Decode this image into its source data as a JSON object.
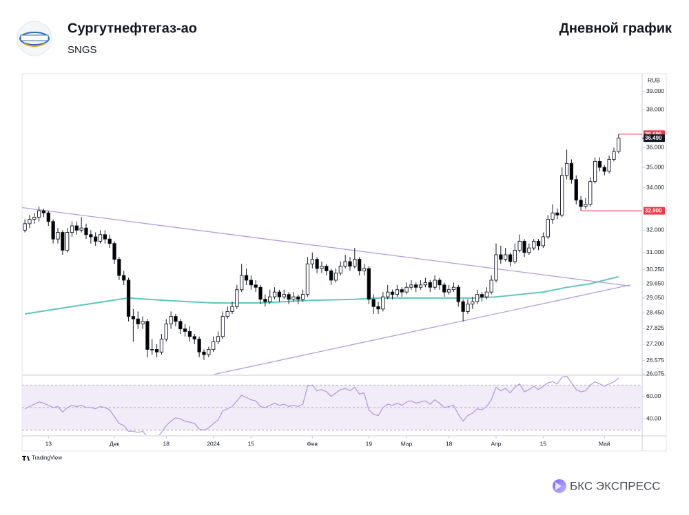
{
  "header": {
    "title": "Сургутнефтегаз-ао",
    "ticker": "SNGS",
    "chart_kind": "Дневной график"
  },
  "footer": {
    "tradingview": "TradingView",
    "brand": "БКС ЭКСПРЕСС"
  },
  "chart_data": {
    "type": "candlestick",
    "currency": "RUB",
    "log_scale": true,
    "up_color": "#ffffff",
    "down_color": "#000000",
    "xlim": [
      -0.6,
      131
    ],
    "xticks": [
      {
        "value": 5,
        "label": "13"
      },
      {
        "value": 19,
        "label": "Дек"
      },
      {
        "value": 30,
        "label": "18"
      },
      {
        "value": 40,
        "label": "2024"
      },
      {
        "value": 48,
        "label": "15"
      },
      {
        "value": 61,
        "label": "Фев"
      },
      {
        "value": 73,
        "label": "19"
      },
      {
        "value": 81,
        "label": "Мар"
      },
      {
        "value": 90,
        "label": "18"
      },
      {
        "value": 100,
        "label": "Апр"
      },
      {
        "value": 110,
        "label": "15"
      },
      {
        "value": 123,
        "label": "Май"
      }
    ],
    "ylim": [
      26.075,
      40
    ],
    "yticks": [
      {
        "value": 39,
        "label": "39.000"
      },
      {
        "value": 38,
        "label": "38.000"
      },
      {
        "value": 36,
        "label": "36.000"
      },
      {
        "value": 35,
        "label": "35.000"
      },
      {
        "value": 34,
        "label": "34.000"
      },
      {
        "value": 32,
        "label": "32.000"
      },
      {
        "value": 31,
        "label": "31.000"
      },
      {
        "value": 30.25,
        "label": "30.250"
      },
      {
        "value": 29.65,
        "label": "29.650"
      },
      {
        "value": 29.05,
        "label": "29.050"
      },
      {
        "value": 28.45,
        "label": "28.450"
      },
      {
        "value": 27.825,
        "label": "27.825"
      },
      {
        "value": 27.2,
        "label": "27.200"
      },
      {
        "value": 26.575,
        "label": "26.575"
      },
      {
        "value": 26.075,
        "label": "26.075"
      }
    ],
    "ohlc": [
      [
        32.0,
        32.5,
        31.9,
        32.3
      ],
      [
        32.3,
        32.7,
        32.1,
        32.5
      ],
      [
        32.5,
        32.8,
        32.3,
        32.6
      ],
      [
        32.6,
        33.1,
        32.4,
        32.9
      ],
      [
        32.9,
        33.0,
        32.6,
        32.8
      ],
      [
        32.8,
        32.9,
        32.2,
        32.4
      ],
      [
        32.4,
        32.5,
        31.4,
        31.6
      ],
      [
        31.6,
        32.1,
        31.4,
        31.9
      ],
      [
        31.9,
        32.0,
        30.9,
        31.1
      ],
      [
        31.1,
        32.1,
        31.0,
        31.9
      ],
      [
        31.9,
        32.4,
        31.7,
        32.2
      ],
      [
        32.2,
        32.4,
        31.8,
        32.0
      ],
      [
        32.0,
        32.6,
        31.9,
        32.1
      ],
      [
        32.1,
        32.3,
        31.6,
        31.8
      ],
      [
        31.8,
        32.0,
        31.4,
        31.7
      ],
      [
        31.7,
        31.9,
        31.3,
        31.5
      ],
      [
        31.5,
        32.0,
        31.4,
        31.8
      ],
      [
        31.8,
        32.0,
        31.4,
        31.6
      ],
      [
        31.6,
        31.8,
        31.2,
        31.4
      ],
      [
        31.4,
        31.5,
        30.5,
        30.7
      ],
      [
        30.7,
        30.8,
        29.8,
        30.0
      ],
      [
        30.0,
        30.2,
        29.6,
        29.8
      ],
      [
        29.8,
        29.9,
        28.1,
        28.3
      ],
      [
        28.3,
        28.6,
        27.3,
        28.2
      ],
      [
        28.2,
        28.5,
        27.8,
        28.0
      ],
      [
        28.0,
        28.3,
        27.8,
        28.1
      ],
      [
        28.1,
        28.2,
        26.7,
        27.0
      ],
      [
        27.0,
        27.4,
        26.8,
        27.0
      ],
      [
        27.0,
        27.2,
        26.7,
        26.9
      ],
      [
        26.9,
        27.6,
        26.8,
        27.4
      ],
      [
        27.4,
        28.2,
        27.3,
        28.0
      ],
      [
        28.0,
        28.5,
        27.8,
        28.3
      ],
      [
        28.3,
        28.4,
        27.9,
        28.1
      ],
      [
        28.1,
        28.2,
        27.6,
        27.8
      ],
      [
        27.8,
        28.0,
        27.5,
        27.7
      ],
      [
        27.7,
        27.9,
        27.3,
        27.5
      ],
      [
        27.5,
        27.6,
        27.2,
        27.4
      ],
      [
        27.4,
        27.5,
        26.7,
        26.9
      ],
      [
        26.9,
        27.0,
        26.6,
        26.8
      ],
      [
        26.8,
        27.1,
        26.7,
        27.0
      ],
      [
        27.0,
        27.5,
        26.9,
        27.3
      ],
      [
        27.3,
        27.7,
        27.2,
        27.5
      ],
      [
        27.5,
        28.5,
        27.4,
        28.3
      ],
      [
        28.3,
        28.7,
        28.2,
        28.5
      ],
      [
        28.5,
        28.9,
        28.4,
        28.7
      ],
      [
        28.7,
        29.6,
        28.6,
        29.4
      ],
      [
        29.4,
        30.5,
        29.3,
        30.0
      ],
      [
        30.0,
        30.3,
        29.6,
        29.8
      ],
      [
        29.8,
        30.0,
        29.4,
        29.6
      ],
      [
        29.6,
        29.8,
        29.3,
        29.5
      ],
      [
        29.5,
        29.6,
        28.8,
        29.0
      ],
      [
        29.0,
        29.2,
        28.7,
        28.9
      ],
      [
        28.9,
        29.4,
        28.8,
        29.1
      ],
      [
        29.1,
        29.5,
        29.0,
        29.3
      ],
      [
        29.3,
        29.4,
        28.9,
        29.1
      ],
      [
        29.1,
        29.4,
        29.0,
        29.2
      ],
      [
        29.2,
        29.3,
        28.8,
        29.0
      ],
      [
        29.0,
        29.3,
        28.9,
        29.1
      ],
      [
        29.1,
        29.2,
        28.8,
        29.0
      ],
      [
        29.0,
        29.4,
        28.9,
        29.2
      ],
      [
        29.2,
        30.8,
        29.1,
        30.5
      ],
      [
        30.5,
        31.0,
        30.3,
        30.7
      ],
      [
        30.7,
        30.8,
        30.1,
        30.3
      ],
      [
        30.3,
        30.6,
        30.1,
        30.4
      ],
      [
        30.4,
        30.5,
        30.0,
        30.2
      ],
      [
        30.2,
        30.3,
        29.6,
        29.8
      ],
      [
        29.8,
        30.3,
        29.7,
        30.1
      ],
      [
        30.1,
        30.6,
        30.0,
        30.4
      ],
      [
        30.4,
        30.9,
        30.3,
        30.6
      ],
      [
        30.6,
        30.8,
        30.2,
        30.4
      ],
      [
        30.4,
        31.2,
        30.3,
        30.7
      ],
      [
        30.7,
        30.8,
        30.0,
        30.2
      ],
      [
        30.2,
        30.5,
        30.0,
        30.3
      ],
      [
        30.3,
        30.4,
        28.8,
        29.0
      ],
      [
        29.0,
        29.2,
        28.4,
        28.7
      ],
      [
        28.7,
        28.9,
        28.4,
        28.6
      ],
      [
        28.6,
        29.3,
        28.5,
        29.1
      ],
      [
        29.1,
        29.6,
        29.0,
        29.3
      ],
      [
        29.3,
        29.4,
        29.0,
        29.2
      ],
      [
        29.2,
        29.6,
        29.1,
        29.4
      ],
      [
        29.4,
        29.5,
        29.1,
        29.3
      ],
      [
        29.3,
        29.7,
        29.2,
        29.5
      ],
      [
        29.5,
        29.8,
        29.4,
        29.6
      ],
      [
        29.6,
        29.7,
        29.3,
        29.5
      ],
      [
        29.5,
        29.8,
        29.4,
        29.6
      ],
      [
        29.6,
        29.9,
        29.5,
        29.7
      ],
      [
        29.7,
        29.8,
        29.3,
        29.5
      ],
      [
        29.5,
        30.0,
        29.4,
        29.8
      ],
      [
        29.8,
        29.9,
        29.4,
        29.6
      ],
      [
        29.6,
        29.7,
        29.1,
        29.3
      ],
      [
        29.3,
        29.6,
        29.2,
        29.4
      ],
      [
        29.4,
        29.7,
        29.3,
        29.5
      ],
      [
        29.5,
        29.6,
        28.7,
        28.9
      ],
      [
        28.9,
        29.0,
        28.1,
        28.5
      ],
      [
        28.5,
        29.0,
        28.4,
        28.8
      ],
      [
        28.8,
        29.1,
        28.6,
        28.9
      ],
      [
        28.9,
        29.4,
        28.8,
        29.2
      ],
      [
        29.2,
        29.3,
        28.9,
        29.1
      ],
      [
        29.1,
        29.5,
        29.0,
        29.3
      ],
      [
        29.3,
        30.0,
        29.2,
        29.8
      ],
      [
        29.8,
        31.4,
        29.7,
        30.9
      ],
      [
        30.9,
        31.3,
        30.5,
        30.7
      ],
      [
        30.7,
        31.2,
        30.6,
        30.9
      ],
      [
        30.9,
        31.0,
        30.4,
        30.6
      ],
      [
        30.6,
        31.4,
        30.5,
        31.1
      ],
      [
        31.1,
        31.8,
        31.0,
        31.5
      ],
      [
        31.5,
        31.6,
        30.8,
        31.0
      ],
      [
        31.0,
        31.4,
        30.9,
        31.2
      ],
      [
        31.2,
        31.6,
        31.1,
        31.5
      ],
      [
        31.5,
        31.6,
        31.1,
        31.3
      ],
      [
        31.3,
        31.9,
        31.2,
        31.7
      ],
      [
        31.7,
        32.7,
        31.6,
        32.5
      ],
      [
        32.5,
        33.2,
        32.3,
        32.8
      ],
      [
        32.8,
        33.0,
        32.5,
        32.7
      ],
      [
        32.7,
        35.0,
        32.6,
        34.6
      ],
      [
        34.6,
        35.9,
        34.4,
        35.2
      ],
      [
        35.2,
        35.4,
        34.2,
        34.4
      ],
      [
        34.4,
        34.6,
        33.2,
        33.4
      ],
      [
        33.4,
        33.6,
        32.9,
        33.1
      ],
      [
        33.1,
        33.5,
        33.0,
        33.2
      ],
      [
        33.2,
        34.5,
        33.1,
        34.3
      ],
      [
        34.3,
        35.5,
        34.2,
        35.3
      ],
      [
        35.3,
        35.5,
        34.8,
        35.0
      ],
      [
        35.0,
        35.1,
        34.6,
        34.8
      ],
      [
        34.8,
        35.6,
        34.7,
        35.4
      ],
      [
        35.4,
        36.0,
        35.3,
        35.8
      ],
      [
        35.8,
        36.695,
        35.7,
        36.49
      ]
    ],
    "ma": {
      "color": "#5ec4c0",
      "x": [
        0,
        10,
        20,
        22,
        30,
        40,
        50,
        60,
        70,
        75,
        85,
        95,
        100,
        105,
        110,
        115,
        120,
        126
      ],
      "values": [
        28.4,
        28.7,
        29.0,
        29.05,
        28.95,
        28.85,
        28.85,
        28.95,
        29.0,
        29.05,
        29.05,
        29.05,
        29.1,
        29.2,
        29.3,
        29.5,
        29.65,
        29.95
      ]
    },
    "trendlines": [
      {
        "color": "#b39ddb",
        "x": [
          -0.6,
          128.5
        ],
        "values": [
          33.05,
          29.55
        ]
      },
      {
        "color": "#b39ddb",
        "x": [
          40,
          128.5
        ],
        "values": [
          26.05,
          29.6
        ]
      }
    ],
    "price_labels": [
      {
        "value": 36.695,
        "label": "36.695",
        "color": "#f23645",
        "x": 126
      },
      {
        "value": 36.49,
        "label": "36.490",
        "color": "#131722"
      },
      {
        "value": 32.9,
        "label": "32.900",
        "color": "#f23645",
        "x": 118
      }
    ],
    "rsi": {
      "color": "#b39ddb",
      "band_color": "#ede7f6",
      "ylim": [
        25.6,
        78.1
      ],
      "levels": [
        70,
        50,
        30
      ],
      "yticks": [
        {
          "value": 60,
          "label": "60.00"
        },
        {
          "value": 40,
          "label": "40.00"
        }
      ],
      "values": [
        49,
        51,
        53,
        55,
        54,
        52,
        50,
        51,
        46,
        50,
        52,
        51,
        52,
        50,
        50,
        49,
        51,
        50,
        48,
        42,
        36,
        34,
        29,
        29,
        28,
        29,
        24,
        24,
        23,
        28,
        34,
        38,
        41,
        40,
        38,
        37,
        36,
        31,
        30,
        32,
        36,
        39,
        47,
        49,
        51,
        56,
        61,
        59,
        57,
        56,
        51,
        50,
        52,
        54,
        52,
        53,
        51,
        52,
        51,
        53,
        69,
        70,
        65,
        66,
        64,
        60,
        63,
        66,
        67,
        65,
        68,
        62,
        63,
        48,
        44,
        43,
        50,
        53,
        52,
        54,
        52,
        55,
        56,
        54,
        55,
        56,
        53,
        57,
        54,
        50,
        51,
        52,
        44,
        38,
        43,
        45,
        49,
        48,
        51,
        57,
        68,
        65,
        67,
        63,
        68,
        71,
        64,
        66,
        69,
        66,
        69,
        72,
        73,
        71,
        77,
        78,
        72,
        66,
        64,
        65,
        70,
        73,
        71,
        69,
        71,
        73,
        76
      ]
    }
  }
}
